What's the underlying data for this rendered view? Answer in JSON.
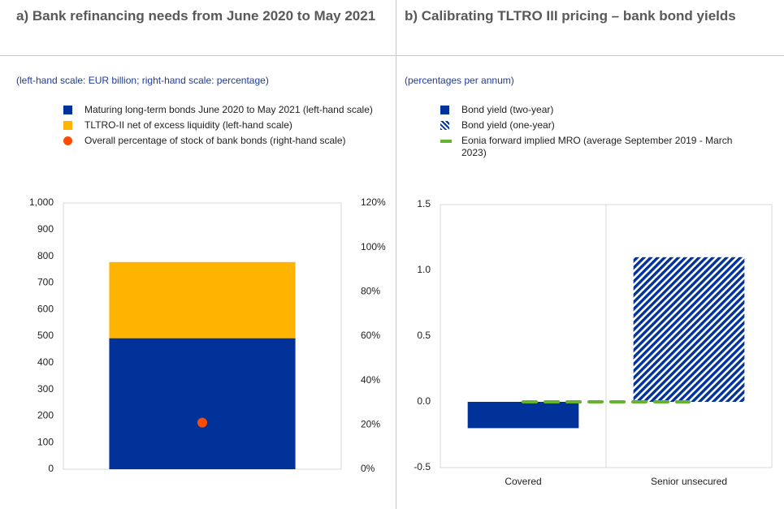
{
  "chart_data": [
    {
      "type": "bar",
      "title": "a) Bank refinancing needs from June 2020 to May 2021",
      "subtitle": "(left-hand scale: EUR billion; right-hand scale: percentage)",
      "categories": [
        null
      ],
      "series": [
        {
          "name": "Maturing long-term bonds June 2020 to May 2021 (left-hand scale)",
          "color": "#003299",
          "values": [
            492
          ]
        },
        {
          "name": "TLTRO-II net of excess liquidity (left-hand scale)",
          "color": "#ffb400",
          "values": [
            286
          ]
        },
        {
          "name": "Overall percentage of stock of bank bonds (right-hand scale)",
          "color": "#ff4b00",
          "type": "scatter",
          "axis": "y2",
          "values": [
            21
          ]
        }
      ],
      "ylim": [
        0,
        1000
      ],
      "yticks": [
        0,
        100,
        200,
        300,
        400,
        500,
        600,
        700,
        800,
        900,
        {
          "value": 1000,
          "label": "1,000"
        }
      ],
      "y2lim": [
        0,
        120
      ],
      "y2ticks": [
        {
          "value": 0,
          "label": "0%"
        },
        {
          "value": 20,
          "label": "20%"
        },
        {
          "value": 40,
          "label": "40%"
        },
        {
          "value": 60,
          "label": "60%"
        },
        {
          "value": 80,
          "label": "80%"
        },
        {
          "value": 100,
          "label": "100%"
        },
        {
          "value": 120,
          "label": "120%"
        }
      ]
    },
    {
      "type": "bar",
      "title": "b) Calibrating TLTRO III pricing – bank bond yields",
      "subtitle": "(percentages per annum)",
      "categories": [
        "Covered",
        "Senior unsecured"
      ],
      "series": [
        {
          "name": "Bond yield (two-year)",
          "color": "#003299",
          "values": [
            -0.2,
            null
          ]
        },
        {
          "name": "Bond yield (one-year)",
          "color": "#003299",
          "pattern": "diagonal-stripes",
          "values": [
            null,
            1.1
          ]
        },
        {
          "name": "Eonia forward implied MRO (average September 2019 - March 2023)",
          "color": "#65b32e",
          "type": "line",
          "values": [
            0,
            0
          ]
        }
      ],
      "ylim": [
        -0.5,
        1.5
      ],
      "yticks": [
        -0.5,
        {
          "value": 0,
          "label": "0.0"
        },
        0.5,
        {
          "value": 1,
          "label": "1.0"
        },
        1.5
      ]
    }
  ]
}
